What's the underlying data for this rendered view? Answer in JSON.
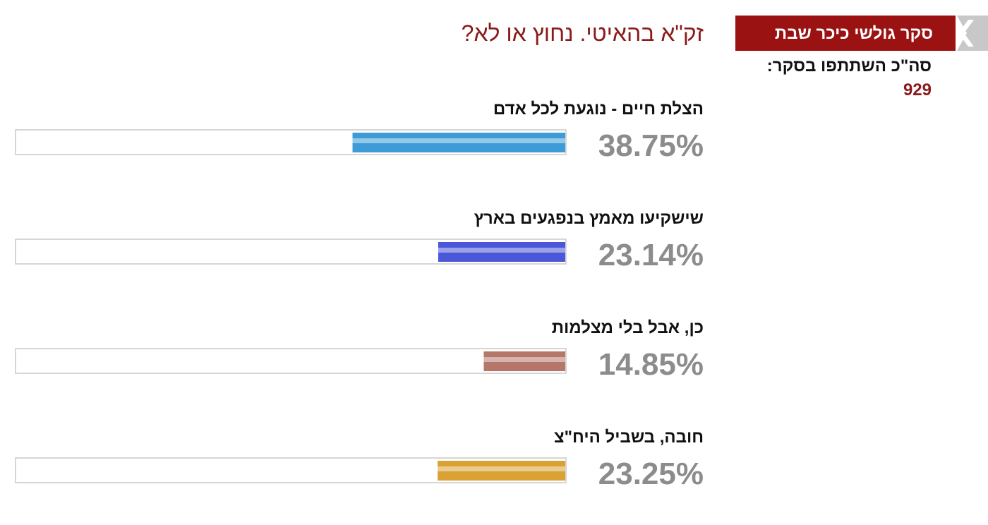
{
  "header": {
    "badge": "סקר גולשי כיכר שבת",
    "participants_label": "סה\"כ השתתפו בסקר:",
    "participants": 929
  },
  "poll": {
    "question": "זק\"א בהאיטי. נחוץ או לא?",
    "xlim": [
      0,
      100
    ],
    "options": [
      {
        "label": "הצלת חיים - נוגעת לכל אדם",
        "value": 38.75,
        "value_label": "38.75%",
        "color": "#3d9bd8"
      },
      {
        "label": "שישקיעו מאמץ בנפגעים בארץ",
        "value": 23.14,
        "value_label": "23.14%",
        "color": "#4a57d9"
      },
      {
        "label": "כן, אבל בלי מצלמות",
        "value": 14.85,
        "value_label": "14.85%",
        "color": "#b5776a"
      },
      {
        "label": "חובה, בשביל היח\"צ",
        "value": 23.25,
        "value_label": "23.25%",
        "color": "#d9a232"
      }
    ]
  }
}
